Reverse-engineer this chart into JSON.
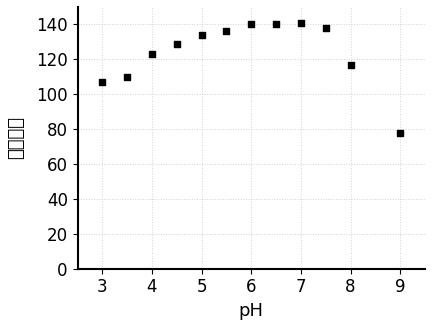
{
  "x": [
    3.0,
    3.5,
    4.0,
    4.5,
    5.0,
    5.5,
    6.0,
    6.5,
    7.0,
    7.5,
    8.0,
    9.0
  ],
  "y": [
    107,
    110,
    123,
    129,
    134,
    136,
    140,
    140,
    141,
    138,
    117,
    78
  ],
  "xlabel": "pH",
  "ylabel": "药光强度",
  "xlim": [
    2.5,
    9.5
  ],
  "ylim": [
    0,
    150
  ],
  "yticks": [
    0,
    20,
    40,
    60,
    80,
    100,
    120,
    140
  ],
  "xticks": [
    3,
    4,
    5,
    6,
    7,
    8,
    9
  ],
  "marker": "s",
  "marker_color": "black",
  "marker_size": 5,
  "background_color": "#ffffff",
  "grid_color": "#c8c8c8",
  "xlabel_fontsize": 13,
  "ylabel_fontsize": 13,
  "tick_fontsize": 12
}
